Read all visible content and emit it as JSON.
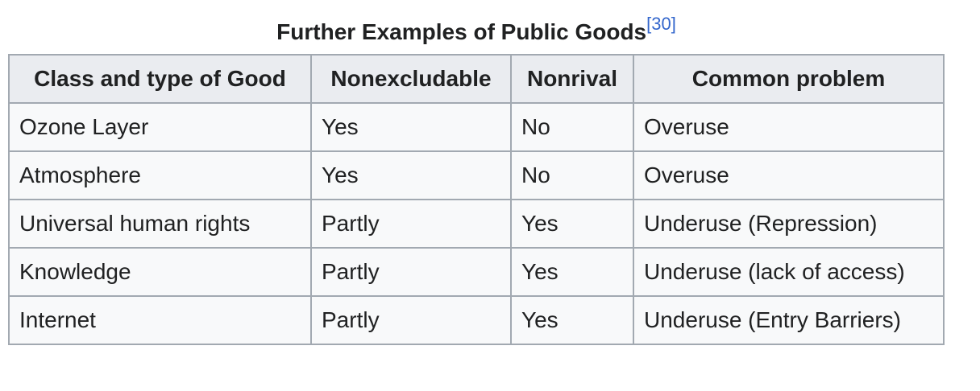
{
  "table": {
    "caption": "Further Examples of Public Goods",
    "caption_ref": "[30]",
    "headers": [
      "Class and type of Good",
      "Nonexcludable",
      "Nonrival",
      "Common problem"
    ],
    "rows": [
      [
        "Ozone Layer",
        "Yes",
        "No",
        "Overuse"
      ],
      [
        "Atmosphere",
        "Yes",
        "No",
        "Overuse"
      ],
      [
        "Universal human rights",
        "Partly",
        "Yes",
        "Underuse (Repression)"
      ],
      [
        "Knowledge",
        "Partly",
        "Yes",
        "Underuse (lack of access)"
      ],
      [
        "Internet",
        "Partly",
        "Yes",
        "Underuse (Entry Barriers)"
      ]
    ]
  },
  "colors": {
    "text": "#202122",
    "link": "#3366cc",
    "header_bg": "#eaecf0",
    "cell_bg": "#f8f9fa",
    "border": "#a2a9b1"
  }
}
